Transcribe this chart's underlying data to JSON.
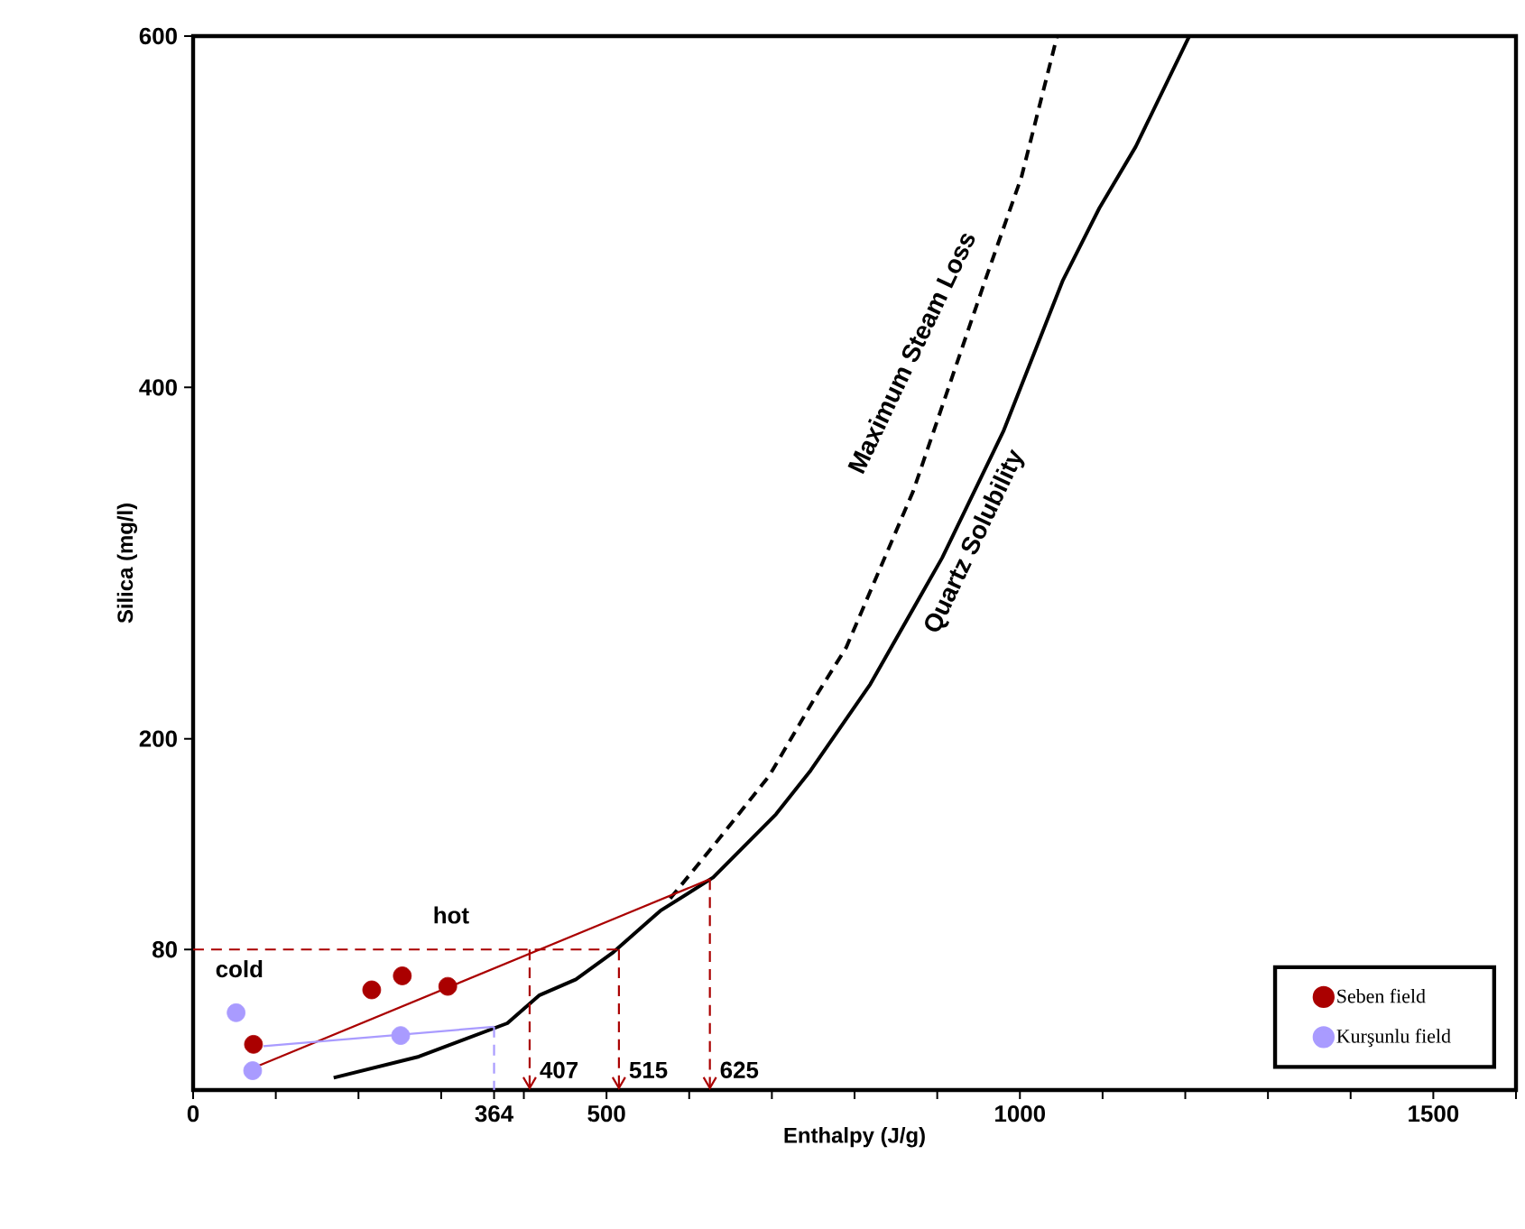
{
  "chart_data": {
    "type": "scatter",
    "xlabel": "Enthalpy (J/g)",
    "ylabel": "Silica (mg/l)",
    "xlim": [
      0,
      1600
    ],
    "ylim": [
      0,
      600
    ],
    "xticks": [
      0,
      {
        "value": 100,
        "label": null
      },
      {
        "value": 200,
        "label": null
      },
      {
        "value": 300,
        "label": null
      },
      {
        "value": 364,
        "label": "364"
      },
      {
        "value": 400,
        "label": null
      },
      500,
      {
        "value": 600,
        "label": null
      },
      {
        "value": 700,
        "label": null
      },
      {
        "value": 800,
        "label": null
      },
      {
        "value": 900,
        "label": null
      },
      1000,
      {
        "value": 1100,
        "label": null
      },
      {
        "value": 1200,
        "label": null
      },
      {
        "value": 1300,
        "label": null
      },
      {
        "value": 1400,
        "label": null
      },
      1500,
      {
        "value": 1600,
        "label": null
      }
    ],
    "yticks": [
      80,
      200,
      400,
      600
    ],
    "legend": "bottom right",
    "series": [
      {
        "type": "line",
        "color": "#000000",
        "line_style": "solid",
        "marker": "none",
        "x": [
          170,
          273,
          380,
          419,
          463,
          507,
          565,
          629,
          705,
          747,
          819,
          906,
          980,
          1052,
          1096,
          1140,
          1205
        ],
        "values": [
          7,
          19,
          38,
          54,
          63,
          78,
          102,
          121,
          157,
          182,
          231,
          303,
          375,
          461,
          502,
          537,
          600
        ]
      },
      {
        "type": "line",
        "color": "#000000",
        "line_style": "dashed",
        "marker": "none",
        "x": [
          577,
          631,
          697,
          753,
          790,
          871,
          958,
          1002,
          1045
        ],
        "values": [
          109,
          140,
          179,
          224,
          252,
          341,
          461,
          520,
          600
        ]
      },
      {
        "type": "line",
        "color": "#aa0000",
        "line_style": "solid",
        "marker": "none",
        "x": [
          80,
          625
        ],
        "values": [
          14,
          120
        ]
      },
      {
        "type": "line",
        "color": "#a99bff",
        "line_style": "solid",
        "marker": "none",
        "x": [
          85,
          364
        ],
        "values": [
          25,
          36
        ]
      },
      {
        "type": "line",
        "color": "#aa0000",
        "line_style": "dashed",
        "marker": "none",
        "x": [
          0,
          515
        ],
        "values": [
          80,
          80
        ]
      },
      {
        "type": "line",
        "color": "#a99bff",
        "line_style": "dashed",
        "marker": "none",
        "x": [
          364,
          364
        ],
        "values": [
          36,
          0
        ]
      },
      {
        "name": "Seben field",
        "color": "#aa0000",
        "marker": "circle",
        "x": [
          73,
          216,
          253,
          308
        ],
        "values": [
          26,
          57,
          65,
          59
        ]
      },
      {
        "name": "Kurşunlu field",
        "color": "#a99bff",
        "marker": "circle",
        "x": [
          52,
          72,
          251
        ],
        "values": [
          44,
          11,
          31
        ]
      }
    ],
    "annotations": [
      "Maximum   Steam   Loss",
      "Quartz   Solubility",
      "hot",
      "cold",
      {
        "text": "407",
        "x": 407,
        "y": 80
      },
      {
        "text": "515",
        "x": 515,
        "y": 80
      },
      {
        "text": "625",
        "x": 625,
        "y": 120
      }
    ]
  }
}
